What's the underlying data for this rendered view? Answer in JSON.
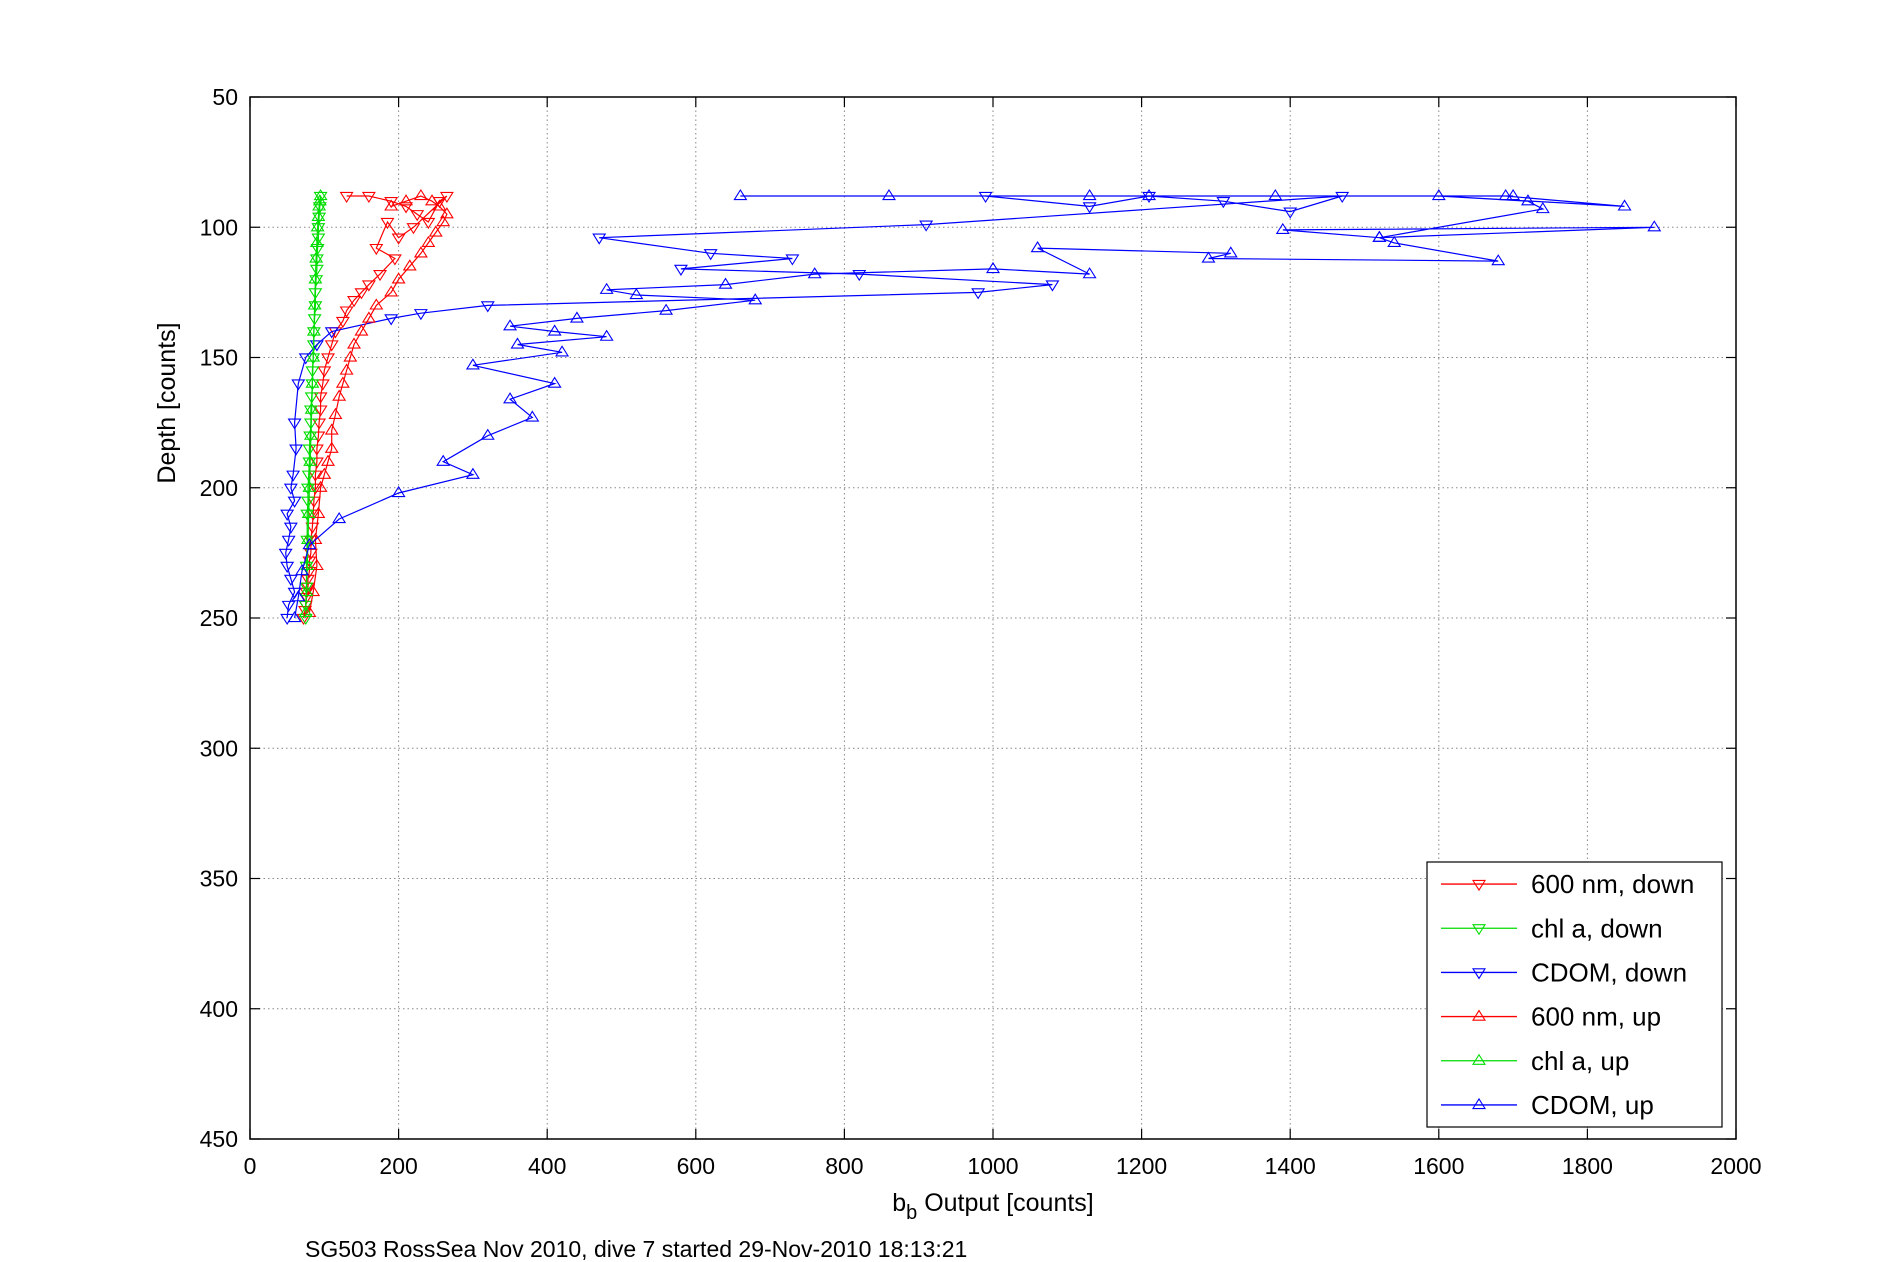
{
  "chart_data": {
    "type": "line",
    "xlabel_main": "b",
    "xlabel_sub": "b",
    "xlabel_rest": " Output [counts]",
    "ylabel": "Depth [counts]",
    "caption": "SG503 RossSea Nov 2010, dive 7 started 29-Nov-2010 18:13:21",
    "xlim": [
      0,
      2000
    ],
    "ylim": [
      50,
      450
    ],
    "y_reversed": true,
    "grid": true,
    "legend_position": "bottom-right",
    "xticks": [
      "0",
      "200",
      "400",
      "600",
      "800",
      "1000",
      "1200",
      "1400",
      "1600",
      "1800",
      "2000"
    ],
    "yticks": [
      "50",
      "100",
      "150",
      "200",
      "250",
      "300",
      "350",
      "400",
      "450"
    ],
    "series": [
      {
        "name": "600 nm, down",
        "color": "#ff0000",
        "marker": "triangle-down",
        "x": [
          130,
          160,
          190,
          210,
          225,
          240,
          255,
          265,
          220,
          200,
          185,
          170,
          195,
          175,
          160,
          150,
          140,
          130,
          125,
          115,
          110,
          105,
          100,
          98,
          95,
          95,
          93,
          92,
          90,
          90,
          88,
          88,
          86,
          85,
          84,
          82,
          82,
          80,
          80,
          78,
          78,
          76,
          76,
          75,
          74,
          72
        ],
        "y": [
          88,
          88,
          90,
          92,
          95,
          98,
          90,
          88,
          100,
          104,
          98,
          108,
          112,
          118,
          122,
          125,
          128,
          132,
          136,
          140,
          145,
          150,
          155,
          160,
          165,
          170,
          175,
          180,
          185,
          190,
          195,
          200,
          205,
          210,
          215,
          220,
          225,
          228,
          232,
          235,
          238,
          240,
          242,
          245,
          247,
          250
        ]
      },
      {
        "name": "chl a, down",
        "color": "#00dd00",
        "marker": "triangle-down",
        "x": [
          95,
          94,
          93,
          92,
          92,
          91,
          90,
          90,
          89,
          88,
          88,
          87,
          86,
          86,
          85,
          84,
          84,
          83,
          82,
          82,
          81,
          80,
          80,
          79,
          78,
          78,
          77,
          77,
          76,
          76,
          75,
          75
        ],
        "y": [
          88,
          92,
          96,
          100,
          104,
          108,
          112,
          116,
          120,
          125,
          130,
          135,
          140,
          145,
          150,
          155,
          160,
          165,
          170,
          175,
          180,
          185,
          190,
          195,
          200,
          205,
          210,
          220,
          230,
          238,
          245,
          250
        ]
      },
      {
        "name": "CDOM, down",
        "color": "#0000ff",
        "marker": "triangle-down",
        "x": [
          990,
          1130,
          1210,
          1310,
          1400,
          1470,
          910,
          470,
          620,
          730,
          580,
          820,
          1080,
          980,
          320,
          230,
          190,
          110,
          90,
          75,
          65,
          60,
          62,
          58,
          55,
          60,
          50,
          55,
          52,
          48,
          50,
          55,
          60,
          52,
          50
        ],
        "y": [
          88,
          92,
          88,
          90,
          94,
          88,
          99,
          104,
          110,
          112,
          116,
          118,
          122,
          125,
          130,
          133,
          135,
          140,
          145,
          150,
          160,
          175,
          185,
          195,
          200,
          205,
          210,
          215,
          220,
          225,
          230,
          235,
          240,
          245,
          250
        ]
      },
      {
        "name": "600 nm, up",
        "color": "#ff0000",
        "marker": "triangle-up",
        "x": [
          80,
          85,
          90,
          88,
          92,
          95,
          100,
          105,
          110,
          110,
          115,
          120,
          125,
          130,
          135,
          140,
          150,
          160,
          170,
          190,
          200,
          215,
          230,
          240,
          250,
          260,
          265,
          255,
          245,
          230,
          210,
          190
        ],
        "y": [
          248,
          240,
          230,
          220,
          210,
          200,
          195,
          190,
          185,
          178,
          172,
          165,
          160,
          155,
          150,
          145,
          140,
          135,
          130,
          125,
          120,
          115,
          110,
          106,
          102,
          98,
          95,
          92,
          90,
          88,
          90,
          92
        ]
      },
      {
        "name": "chl a, up",
        "color": "#00dd00",
        "marker": "triangle-up",
        "x": [
          75,
          76,
          77,
          78,
          79,
          80,
          81,
          82,
          83,
          84,
          85,
          86,
          87,
          88,
          89,
          90,
          91,
          92,
          93,
          94,
          95
        ],
        "y": [
          248,
          240,
          230,
          220,
          210,
          200,
          190,
          180,
          170,
          160,
          150,
          140,
          130,
          120,
          112,
          106,
          100,
          96,
          92,
          90,
          88
        ]
      },
      {
        "name": "CDOM, up",
        "color": "#0000ff",
        "marker": "triangle-up",
        "x": [
          60,
          65,
          70,
          80,
          120,
          200,
          300,
          260,
          320,
          380,
          350,
          410,
          300,
          420,
          360,
          480,
          410,
          350,
          440,
          560,
          680,
          520,
          480,
          640,
          760,
          1000,
          1130,
          1060,
          1320,
          1290,
          1680,
          1540,
          1520,
          1890,
          1390,
          1520,
          1740,
          1720,
          1600,
          1850,
          1690,
          1700,
          660,
          860,
          1130,
          1210,
          1380
        ],
        "y": [
          250,
          242,
          232,
          222,
          212,
          202,
          195,
          190,
          180,
          173,
          166,
          160,
          153,
          148,
          145,
          142,
          140,
          138,
          135,
          132,
          128,
          126,
          124,
          122,
          118,
          116,
          118,
          108,
          110,
          112,
          113,
          106,
          104,
          100,
          101,
          104,
          93,
          90,
          88,
          92,
          88,
          88,
          88,
          88,
          88,
          88,
          88
        ]
      }
    ]
  }
}
